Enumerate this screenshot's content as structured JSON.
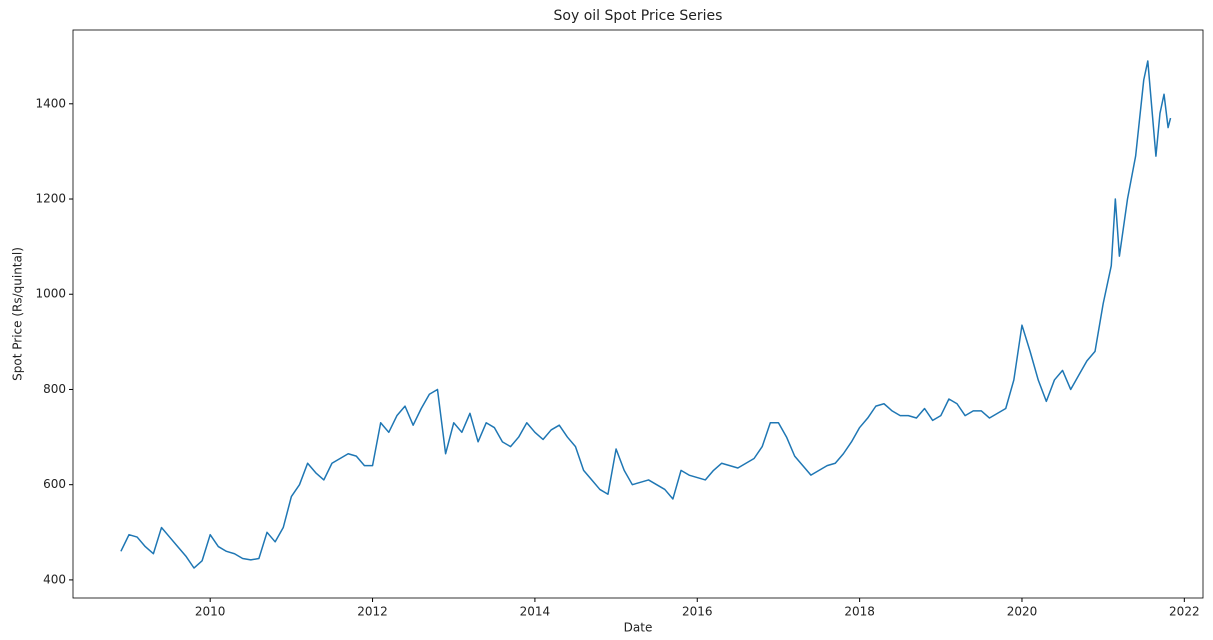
{
  "chart_data": {
    "type": "line",
    "title": "Soy oil Spot Price Series",
    "xlabel": "Date",
    "ylabel": "Spot Price (Rs/quintal)",
    "x": [
      2008.9,
      2009.0,
      2009.1,
      2009.2,
      2009.3,
      2009.4,
      2009.5,
      2009.6,
      2009.7,
      2009.8,
      2009.9,
      2010.0,
      2010.1,
      2010.2,
      2010.3,
      2010.4,
      2010.5,
      2010.6,
      2010.7,
      2010.8,
      2010.9,
      2011.0,
      2011.1,
      2011.2,
      2011.3,
      2011.4,
      2011.5,
      2011.6,
      2011.7,
      2011.8,
      2011.9,
      2012.0,
      2012.1,
      2012.2,
      2012.3,
      2012.4,
      2012.5,
      2012.6,
      2012.7,
      2012.8,
      2012.9,
      2013.0,
      2013.1,
      2013.2,
      2013.3,
      2013.4,
      2013.5,
      2013.6,
      2013.7,
      2013.8,
      2013.9,
      2014.0,
      2014.1,
      2014.2,
      2014.3,
      2014.4,
      2014.5,
      2014.6,
      2014.7,
      2014.8,
      2014.9,
      2015.0,
      2015.1,
      2015.2,
      2015.3,
      2015.4,
      2015.5,
      2015.6,
      2015.7,
      2015.8,
      2015.9,
      2016.0,
      2016.1,
      2016.2,
      2016.3,
      2016.4,
      2016.5,
      2016.6,
      2016.7,
      2016.8,
      2016.9,
      2017.0,
      2017.1,
      2017.2,
      2017.3,
      2017.4,
      2017.5,
      2017.6,
      2017.7,
      2017.8,
      2017.9,
      2018.0,
      2018.1,
      2018.2,
      2018.3,
      2018.4,
      2018.5,
      2018.6,
      2018.7,
      2018.8,
      2018.9,
      2019.0,
      2019.1,
      2019.2,
      2019.3,
      2019.4,
      2019.5,
      2019.6,
      2019.7,
      2019.8,
      2019.9,
      2020.0,
      2020.1,
      2020.2,
      2020.3,
      2020.4,
      2020.5,
      2020.6,
      2020.7,
      2020.8,
      2020.9,
      2021.0,
      2021.1,
      2021.15,
      2021.2,
      2021.3,
      2021.4,
      2021.5,
      2021.55,
      2021.6,
      2021.65,
      2021.7,
      2021.75,
      2021.8,
      2021.83
    ],
    "series": [
      {
        "name": "Spot Price",
        "color": "#1f77b4",
        "values": [
          460,
          495,
          490,
          470,
          455,
          510,
          490,
          470,
          450,
          425,
          440,
          495,
          470,
          460,
          455,
          445,
          442,
          445,
          500,
          480,
          510,
          575,
          600,
          645,
          625,
          610,
          645,
          655,
          665,
          660,
          640,
          640,
          730,
          710,
          745,
          765,
          725,
          760,
          790,
          800,
          665,
          730,
          710,
          750,
          690,
          730,
          720,
          690,
          680,
          700,
          730,
          710,
          695,
          715,
          725,
          700,
          680,
          630,
          610,
          590,
          580,
          675,
          630,
          600,
          605,
          610,
          600,
          590,
          570,
          630,
          620,
          615,
          610,
          630,
          645,
          640,
          635,
          645,
          655,
          680,
          730,
          730,
          700,
          660,
          640,
          620,
          630,
          640,
          645,
          665,
          690,
          720,
          740,
          765,
          770,
          755,
          745,
          745,
          740,
          760,
          735,
          745,
          780,
          770,
          745,
          755,
          755,
          740,
          750,
          760,
          820,
          935,
          880,
          820,
          775,
          820,
          840,
          800,
          830,
          860,
          880,
          980,
          1060,
          1200,
          1080,
          1200,
          1290,
          1450,
          1490,
          1390,
          1290,
          1380,
          1420,
          1350,
          1370
        ]
      }
    ],
    "xlim": [
      2008.31,
      2022.23
    ],
    "ylim": [
      362,
      1555
    ],
    "xticks": [
      2010,
      2012,
      2014,
      2016,
      2018,
      2020,
      2022
    ],
    "yticks": [
      400,
      600,
      800,
      1000,
      1200,
      1400
    ],
    "grid": false
  }
}
